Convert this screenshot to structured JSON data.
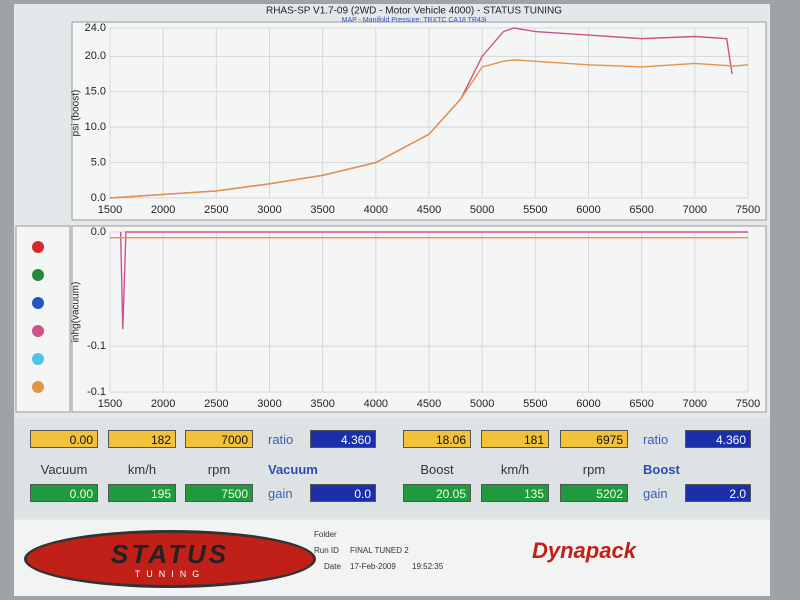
{
  "title": "RHAS-SP V1.7-09  (2WD - Motor Vehicle 4000) - STATUS TUNING",
  "subtitle": "MAP - Manifold Pressure: TRXTC CA18 TR43i",
  "chart_data": [
    {
      "type": "line",
      "ylabel": "psi (boost)",
      "x": [
        1500,
        2000,
        2500,
        3000,
        3500,
        4000,
        4500,
        4800,
        5000,
        5200,
        5300,
        5500,
        6000,
        6500,
        7000,
        7300,
        7350,
        7500
      ],
      "series": [
        {
          "color": "#d0508e",
          "values": [
            0,
            0.5,
            1,
            2,
            3.2,
            5,
            9,
            14,
            20,
            23.5,
            24,
            23.5,
            23,
            22.5,
            22.8,
            22.5,
            17.5,
            null
          ]
        },
        {
          "color": "#e2944a",
          "values": [
            0,
            0.5,
            1,
            2,
            3.2,
            5,
            9,
            14,
            18.5,
            19.3,
            19.5,
            19.3,
            18.8,
            18.5,
            19,
            18.7,
            18.6,
            18.8
          ]
        }
      ],
      "xlim": [
        1500,
        7500
      ],
      "xticks": [
        1500,
        2000,
        2500,
        3000,
        3500,
        4000,
        4500,
        5000,
        5500,
        6000,
        6500,
        7000,
        7500
      ],
      "ylim": [
        0,
        24
      ],
      "yticks": [
        {
          "value": 0,
          "label": "0.0"
        },
        {
          "value": 5,
          "label": "5.0"
        },
        {
          "value": 10,
          "label": "10.0"
        },
        {
          "value": 15,
          "label": "15.0"
        },
        {
          "value": 20,
          "label": "20.0"
        },
        {
          "value": 24,
          "label": "24.0"
        }
      ],
      "grid": true
    },
    {
      "type": "line",
      "ylabel": "inhg(vacuum)",
      "x": [
        1500,
        1600,
        1620,
        1650,
        7500
      ],
      "series": [
        {
          "color": "#d0508e",
          "values": [
            null,
            0,
            -0.085,
            0,
            0
          ]
        },
        {
          "color": "#e2944a",
          "values": [
            -0.005,
            -0.005,
            -0.005,
            -0.005,
            -0.005
          ]
        }
      ],
      "xlim": [
        1500,
        7500
      ],
      "xticks": [
        1500,
        2000,
        2500,
        3000,
        3500,
        4000,
        4500,
        5000,
        5500,
        6000,
        6500,
        7000,
        7500
      ],
      "ylim": [
        -0.14,
        0
      ],
      "yticks": [
        {
          "value": 0,
          "label": "0.0"
        },
        {
          "value": -0.1,
          "label": "-0.1"
        },
        {
          "value": -0.14,
          "label": "-0.1"
        }
      ],
      "grid": true
    }
  ],
  "readouts": [
    {
      "top": [
        "0.00",
        "182",
        "7000"
      ],
      "labels": [
        "Vacuum",
        "km/h",
        "rpm"
      ],
      "bottom": [
        "0.00",
        "195",
        "7500"
      ],
      "ratio_label": "ratio",
      "ratio": "4.360",
      "mode": "Vacuum",
      "gain_label": "gain",
      "gain": "0.0"
    },
    {
      "top": [
        "18.06",
        "181",
        "6975"
      ],
      "labels": [
        "Boost",
        "km/h",
        "rpm"
      ],
      "bottom": [
        "20.05",
        "135",
        "5202"
      ],
      "ratio_label": "ratio",
      "ratio": "4.360",
      "mode": "Boost",
      "gain_label": "gain",
      "gain": "2.0"
    }
  ],
  "footer": {
    "logo": "STATUS",
    "logo_sub": "TUNING",
    "folder_label": "Folder",
    "run_label": "Run ID",
    "run": "FINAL TUNED 2",
    "date_label": "Date",
    "date": "17-Feb-2009",
    "time": "19:52:35",
    "brand": "Dynapack"
  }
}
